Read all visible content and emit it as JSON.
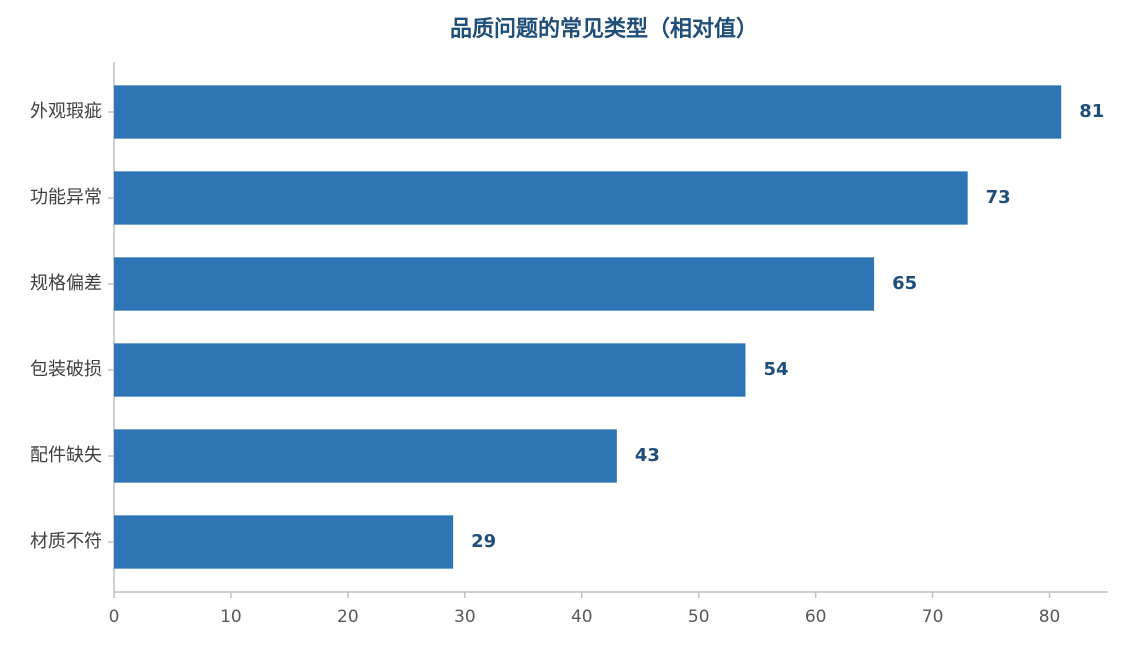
{
  "chart_data": {
    "type": "bar",
    "orientation": "horizontal",
    "title": "品质问题的常见类型（相对值）",
    "categories": [
      "外观瑕疵",
      "功能异常",
      "规格偏差",
      "包装破损",
      "配件缺失",
      "材质不符"
    ],
    "values": [
      81,
      73,
      65,
      54,
      43,
      29
    ],
    "color": "#2e75b6",
    "xlim": [
      0,
      85
    ],
    "xticks": [
      0,
      10,
      20,
      30,
      40,
      50,
      60,
      70,
      80
    ],
    "grid": false
  }
}
